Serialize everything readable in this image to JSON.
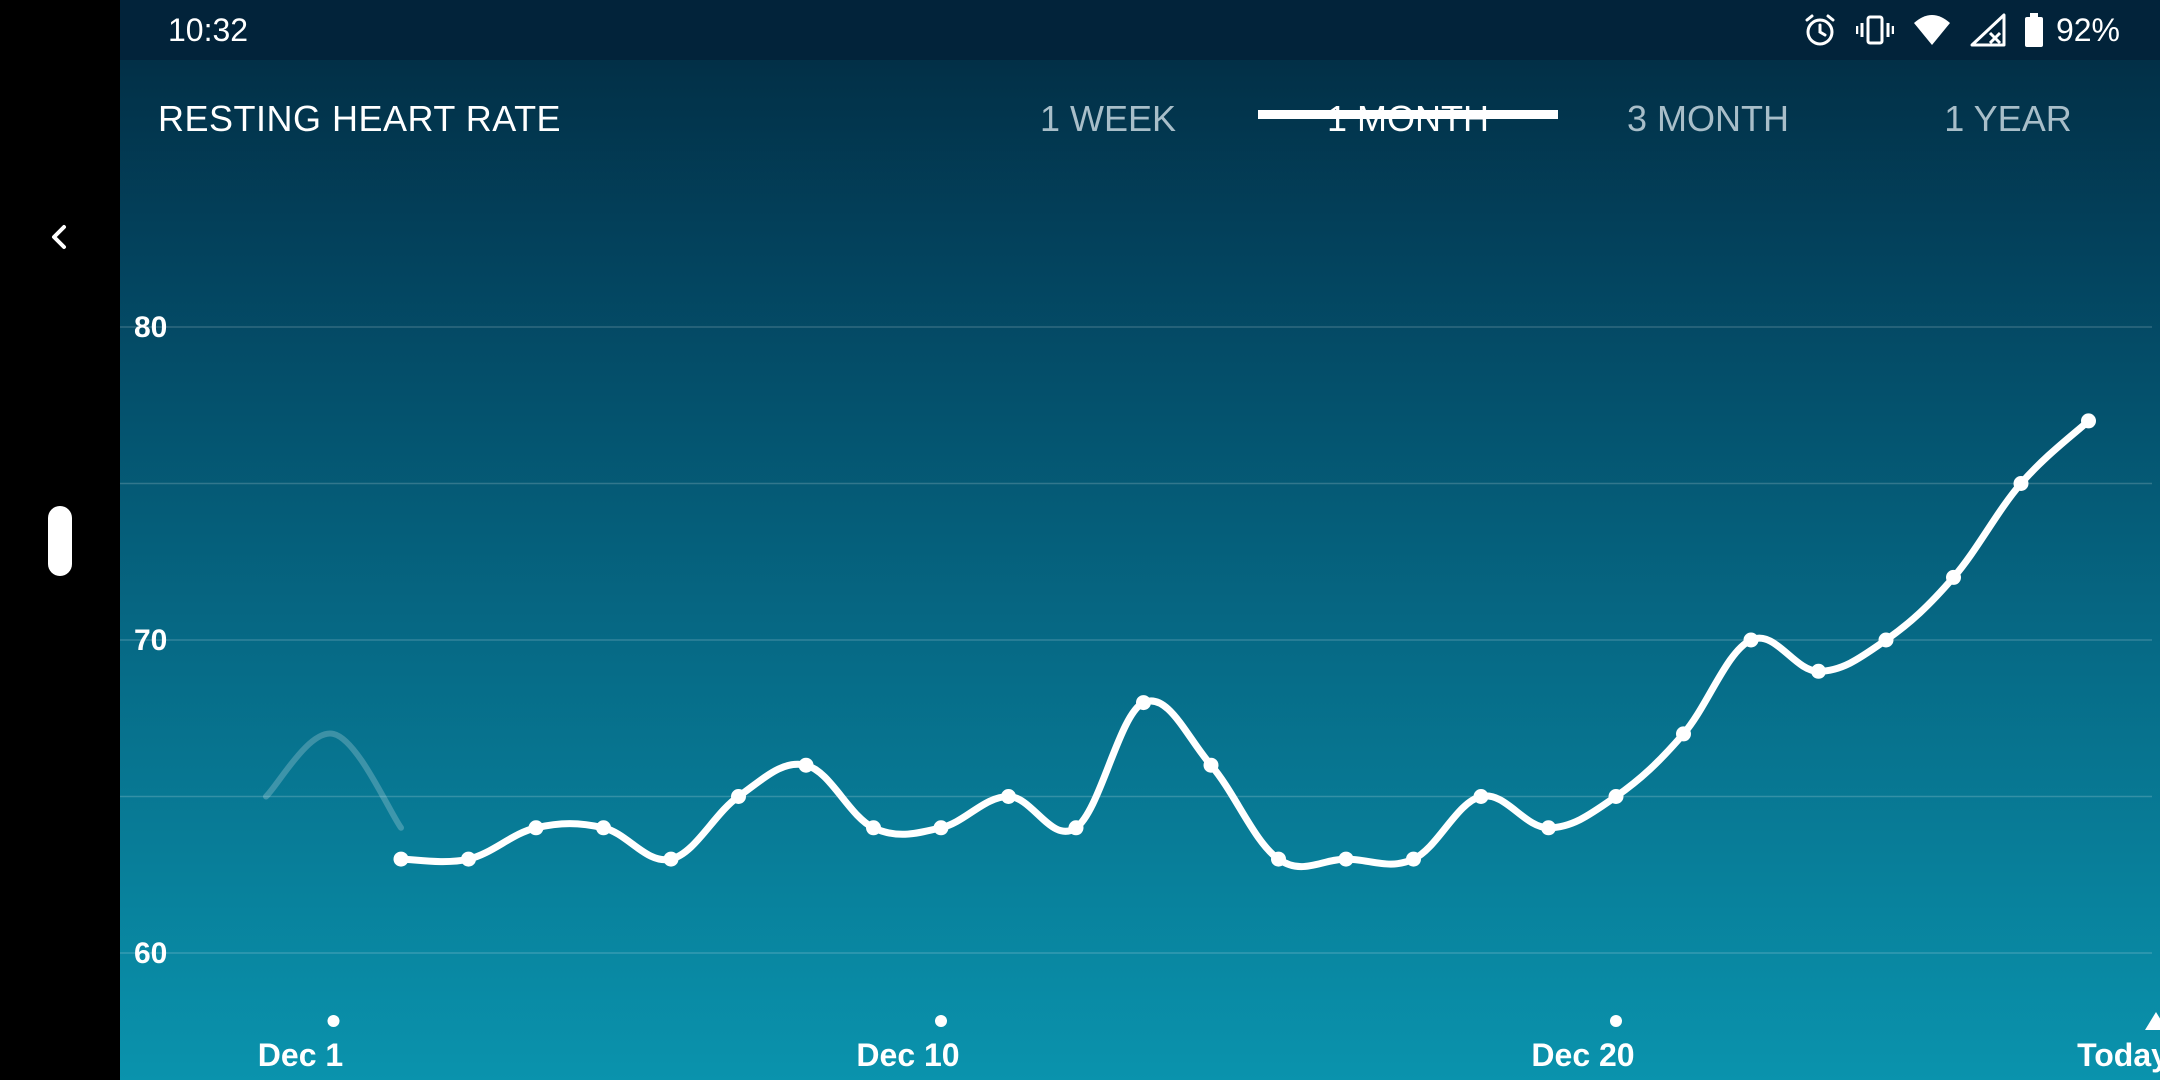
{
  "status_bar": {
    "time": "10:32",
    "icons": [
      "alarm-icon",
      "vibrate-icon",
      "wifi-icon",
      "no-signal-icon",
      "battery-icon"
    ],
    "battery_percent": "92%"
  },
  "header": {
    "title": "RESTING HEART RATE",
    "tabs": [
      {
        "label": "1 WEEK",
        "active": false
      },
      {
        "label": "1 MONTH",
        "active": true
      },
      {
        "label": "3 MONTH",
        "active": false
      },
      {
        "label": "1 YEAR",
        "active": false
      }
    ]
  },
  "nav": {
    "back_icon": "chevron-left-icon",
    "home_icon": "home-pill-icon"
  },
  "colors": {
    "background_top": "#022a40",
    "background_bottom": "#0a93ad",
    "line": "#ffffff",
    "tab_inactive": "#a8bec9"
  },
  "chart_data": {
    "type": "line",
    "title": "RESTING HEART RATE",
    "xlabel": "",
    "ylabel": "",
    "ylim": [
      60,
      80
    ],
    "yticks": [
      "60",
      "70",
      "80"
    ],
    "grid": true,
    "x_tick_labels": [
      {
        "label": "Dec 1",
        "day": 1
      },
      {
        "label": "Dec 10",
        "day": 10
      },
      {
        "label": "Dec 20",
        "day": 20
      },
      {
        "label": "Today",
        "day": 28
      }
    ],
    "faded_lead_in": [
      {
        "day": 0,
        "y": 65
      },
      {
        "day": 1,
        "y": 67
      },
      {
        "day": 2,
        "y": 64
      }
    ],
    "series": [
      {
        "points": [
          {
            "day": 2,
            "y": 63
          },
          {
            "day": 3,
            "y": 63
          },
          {
            "day": 4,
            "y": 64
          },
          {
            "day": 5,
            "y": 64
          },
          {
            "day": 6,
            "y": 63
          },
          {
            "day": 7,
            "y": 65
          },
          {
            "day": 8,
            "y": 66
          },
          {
            "day": 9,
            "y": 64
          },
          {
            "day": 10,
            "y": 64
          },
          {
            "day": 11,
            "y": 65
          },
          {
            "day": 12,
            "y": 64
          },
          {
            "day": 13,
            "y": 68
          },
          {
            "day": 14,
            "y": 66
          },
          {
            "day": 15,
            "y": 63
          },
          {
            "day": 16,
            "y": 63
          },
          {
            "day": 17,
            "y": 63
          },
          {
            "day": 18,
            "y": 65
          },
          {
            "day": 19,
            "y": 64
          },
          {
            "day": 20,
            "y": 65
          },
          {
            "day": 21,
            "y": 67
          },
          {
            "day": 22,
            "y": 70
          },
          {
            "day": 23,
            "y": 69
          },
          {
            "day": 24,
            "y": 70
          },
          {
            "day": 25,
            "y": 72
          },
          {
            "day": 26,
            "y": 75
          },
          {
            "day": 27,
            "y": 77
          }
        ]
      }
    ]
  }
}
